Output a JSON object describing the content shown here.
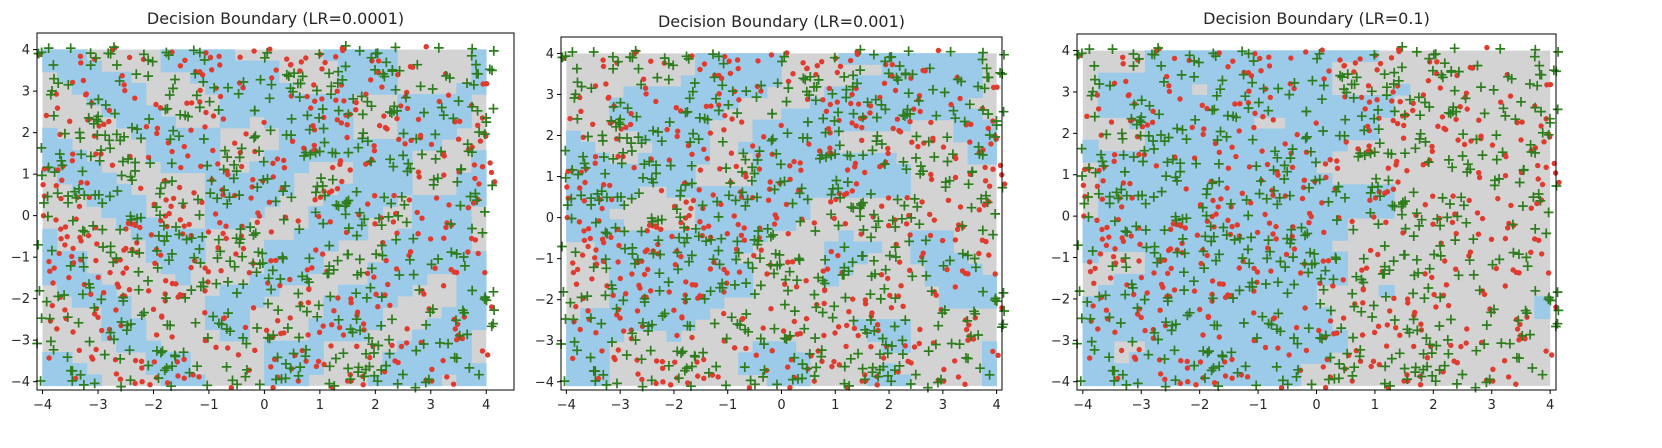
{
  "chart_data": [
    {
      "type": "scatter",
      "title": "Decision Boundary (LR=0.0001)",
      "xlim": [
        -4.1,
        4.5
      ],
      "ylim": [
        -4.2,
        4.4
      ],
      "xticks": [
        "−4",
        "−3",
        "−2",
        "−1",
        "0",
        "1",
        "2",
        "3",
        "4"
      ],
      "yticks": [
        "−4",
        "−3",
        "−2",
        "−1",
        "0",
        "1",
        "2",
        "3",
        "4"
      ],
      "grid": false,
      "region_bounds": [
        -4.0,
        4.0,
        -4.1,
        4.0
      ],
      "region_grid": 30,
      "region_seed": 11,
      "region_mix": 0.15,
      "region_colors": {
        "class_0": "#d3d3d3",
        "class_1": "#9ccbe9"
      },
      "series": [
        {
          "class": 0,
          "marker": "circle",
          "color": "#e03b2e",
          "count": 520,
          "seed": 101
        },
        {
          "class": 1,
          "marker": "plus",
          "color": "#2e7d1d",
          "count": 580,
          "seed": 202
        }
      ]
    },
    {
      "type": "scatter",
      "title": "Decision Boundary (LR=0.001)",
      "xlim": [
        -4.1,
        4.1
      ],
      "ylim": [
        -4.2,
        4.4
      ],
      "xticks": [
        "−4",
        "−3",
        "−2",
        "−1",
        "0",
        "1",
        "2",
        "3",
        "4"
      ],
      "yticks": [
        "−4",
        "−3",
        "−2",
        "−1",
        "0",
        "1",
        "2",
        "3",
        "4"
      ],
      "grid": false,
      "region_bounds": [
        -4.0,
        4.0,
        -4.1,
        4.0
      ],
      "region_grid": 30,
      "region_seed": 23,
      "region_mix": 0.25,
      "region_colors": {
        "class_0": "#d3d3d3",
        "class_1": "#9ccbe9"
      },
      "series": [
        {
          "class": 0,
          "marker": "circle",
          "color": "#e03b2e",
          "count": 520,
          "seed": 101
        },
        {
          "class": 1,
          "marker": "plus",
          "color": "#2e7d1d",
          "count": 580,
          "seed": 202
        }
      ]
    },
    {
      "type": "scatter",
      "title": "Decision Boundary (LR=0.1)",
      "xlim": [
        -4.1,
        4.1
      ],
      "ylim": [
        -4.2,
        4.4
      ],
      "xticks": [
        "−4",
        "−3",
        "−2",
        "−1",
        "0",
        "1",
        "2",
        "3",
        "4"
      ],
      "yticks": [
        "−4",
        "−3",
        "−2",
        "−1",
        "0",
        "1",
        "2",
        "3",
        "4"
      ],
      "grid": false,
      "region_bounds": [
        -4.0,
        4.0,
        -4.1,
        4.0
      ],
      "region_grid": 30,
      "region_seed": 37,
      "region_mix": 0.55,
      "region_colors": {
        "class_0": "#d3d3d3",
        "class_1": "#9ccbe9"
      },
      "series": [
        {
          "class": 0,
          "marker": "circle",
          "color": "#e03b2e",
          "count": 520,
          "seed": 101
        },
        {
          "class": 1,
          "marker": "plus",
          "color": "#2e7d1d",
          "count": 580,
          "seed": 202
        }
      ]
    }
  ]
}
